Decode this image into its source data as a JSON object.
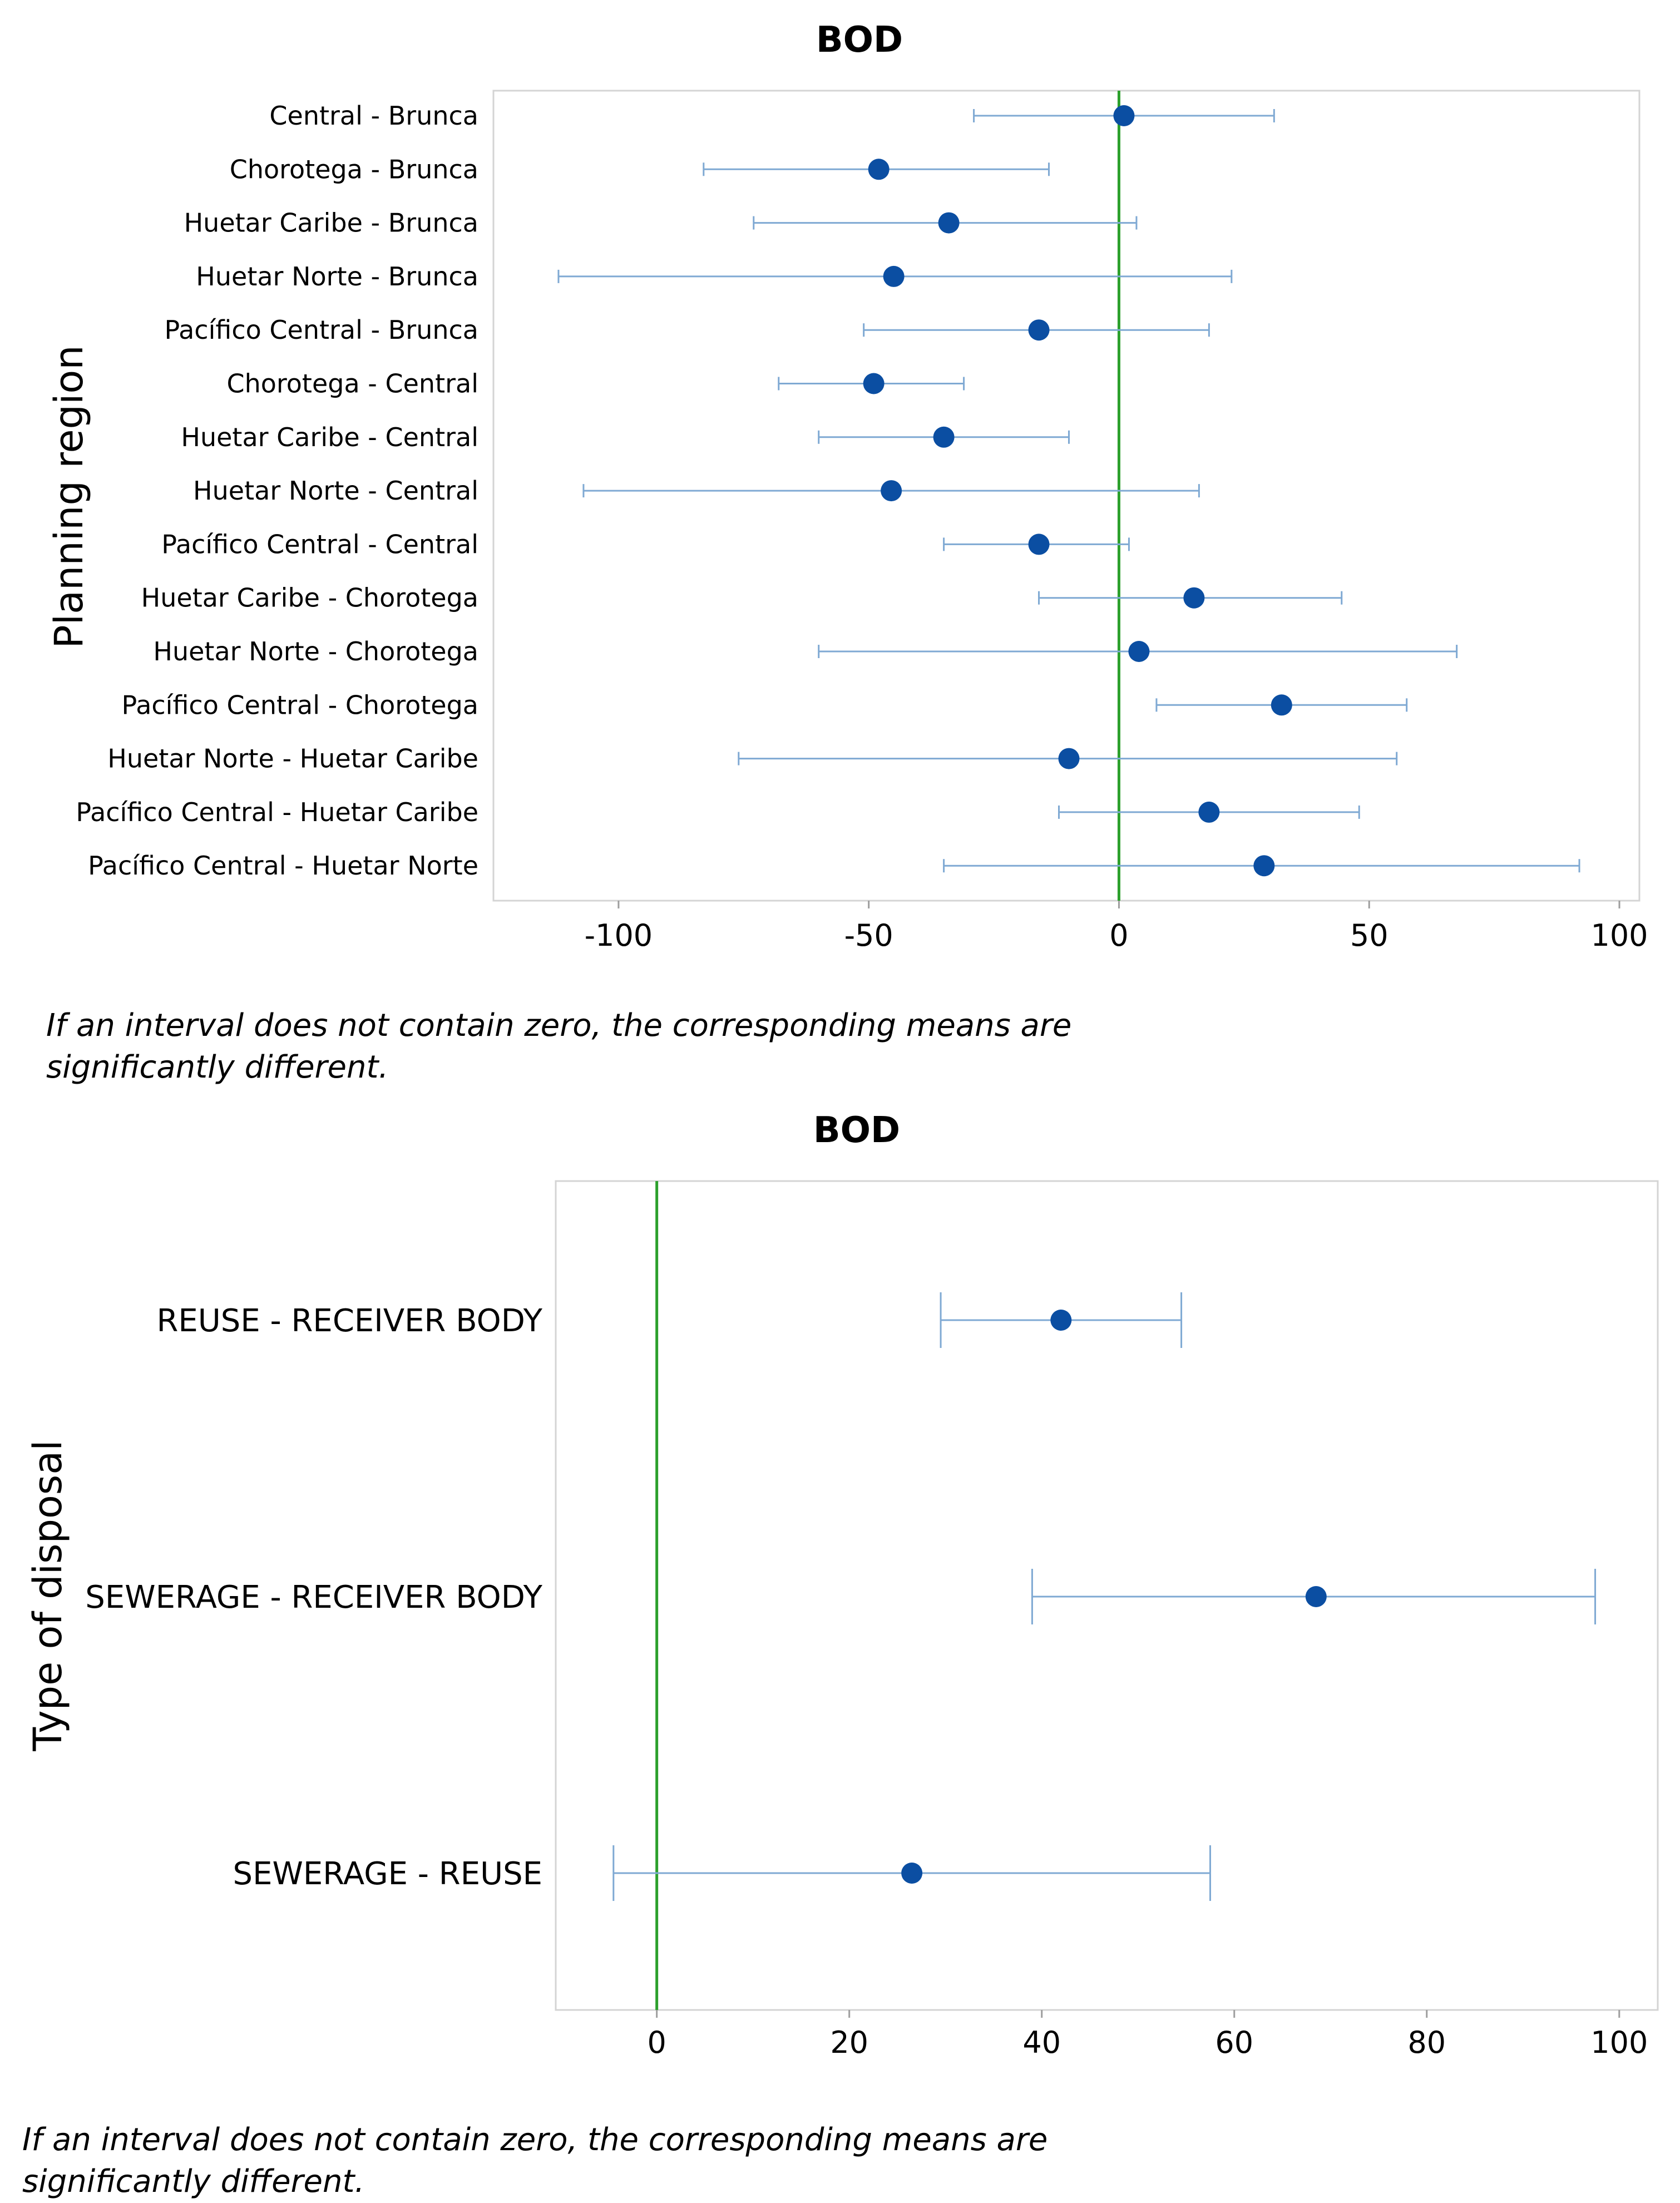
{
  "chart_data": [
    {
      "type": "interval",
      "title": "BOD",
      "ylabel": "Planning region",
      "xlabel": "",
      "xlim": [
        -125,
        104
      ],
      "xticks": [
        -100,
        -50,
        0,
        50,
        100
      ],
      "xtick_labels": [
        "-100",
        "-50",
        "0",
        "50",
        "100"
      ],
      "reference_line": 0,
      "reference_color": "#2ca02c",
      "point_color": "#0b4ea2",
      "interval_color": "#7fa9d3",
      "grid": false,
      "categories": [
        "Central - Brunca",
        "Chorotega - Brunca",
        "Huetar Caribe - Brunca",
        "Huetar Norte - Brunca",
        "Pacífico Central - Brunca",
        "Chorotega - Central",
        "Huetar Caribe - Central",
        "Huetar Norte - Central",
        "Pacífico Central - Central",
        "Huetar Caribe - Chorotega",
        "Huetar Norte - Chorotega",
        "Pacífico Central - Chorotega",
        "Huetar Norte - Huetar Caribe",
        "Pacífico Central - Huetar Caribe",
        "Pacífico Central - Huetar Norte"
      ],
      "estimate": [
        1,
        -48,
        -34,
        -45,
        -16,
        -49,
        -35,
        -45.5,
        -16,
        15,
        4,
        32.5,
        -10,
        18,
        29
      ],
      "lower": [
        -29,
        -83,
        -73,
        -112,
        -51,
        -68,
        -60,
        -107,
        -35,
        -16,
        -60,
        7.5,
        -76,
        -12,
        -35
      ],
      "upper": [
        31,
        -14,
        3.5,
        22.5,
        18,
        -31,
        -10,
        16,
        2,
        44.5,
        67.5,
        57.5,
        55.5,
        48,
        92
      ],
      "note": "If an interval does not contain zero, the corresponding means are significantly different."
    },
    {
      "type": "interval",
      "title": "BOD",
      "ylabel": "Type of disposal",
      "xlabel": "",
      "xlim": [
        -10.5,
        104
      ],
      "xticks": [
        0,
        20,
        40,
        60,
        80,
        100
      ],
      "xtick_labels": [
        "0",
        "20",
        "40",
        "60",
        "80",
        "100"
      ],
      "reference_line": 0,
      "reference_color": "#2ca02c",
      "point_color": "#0b4ea2",
      "interval_color": "#7fa9d3",
      "grid": false,
      "categories": [
        "REUSE - RECEIVER BODY",
        "SEWERAGE - RECEIVER BODY",
        "SEWERAGE - REUSE"
      ],
      "estimate": [
        42,
        68.5,
        26.5
      ],
      "lower": [
        29.5,
        39,
        -4.5
      ],
      "upper": [
        54.5,
        97.5,
        57.5
      ],
      "note": "If an interval does not contain zero, the corresponding means are significantly different."
    }
  ]
}
